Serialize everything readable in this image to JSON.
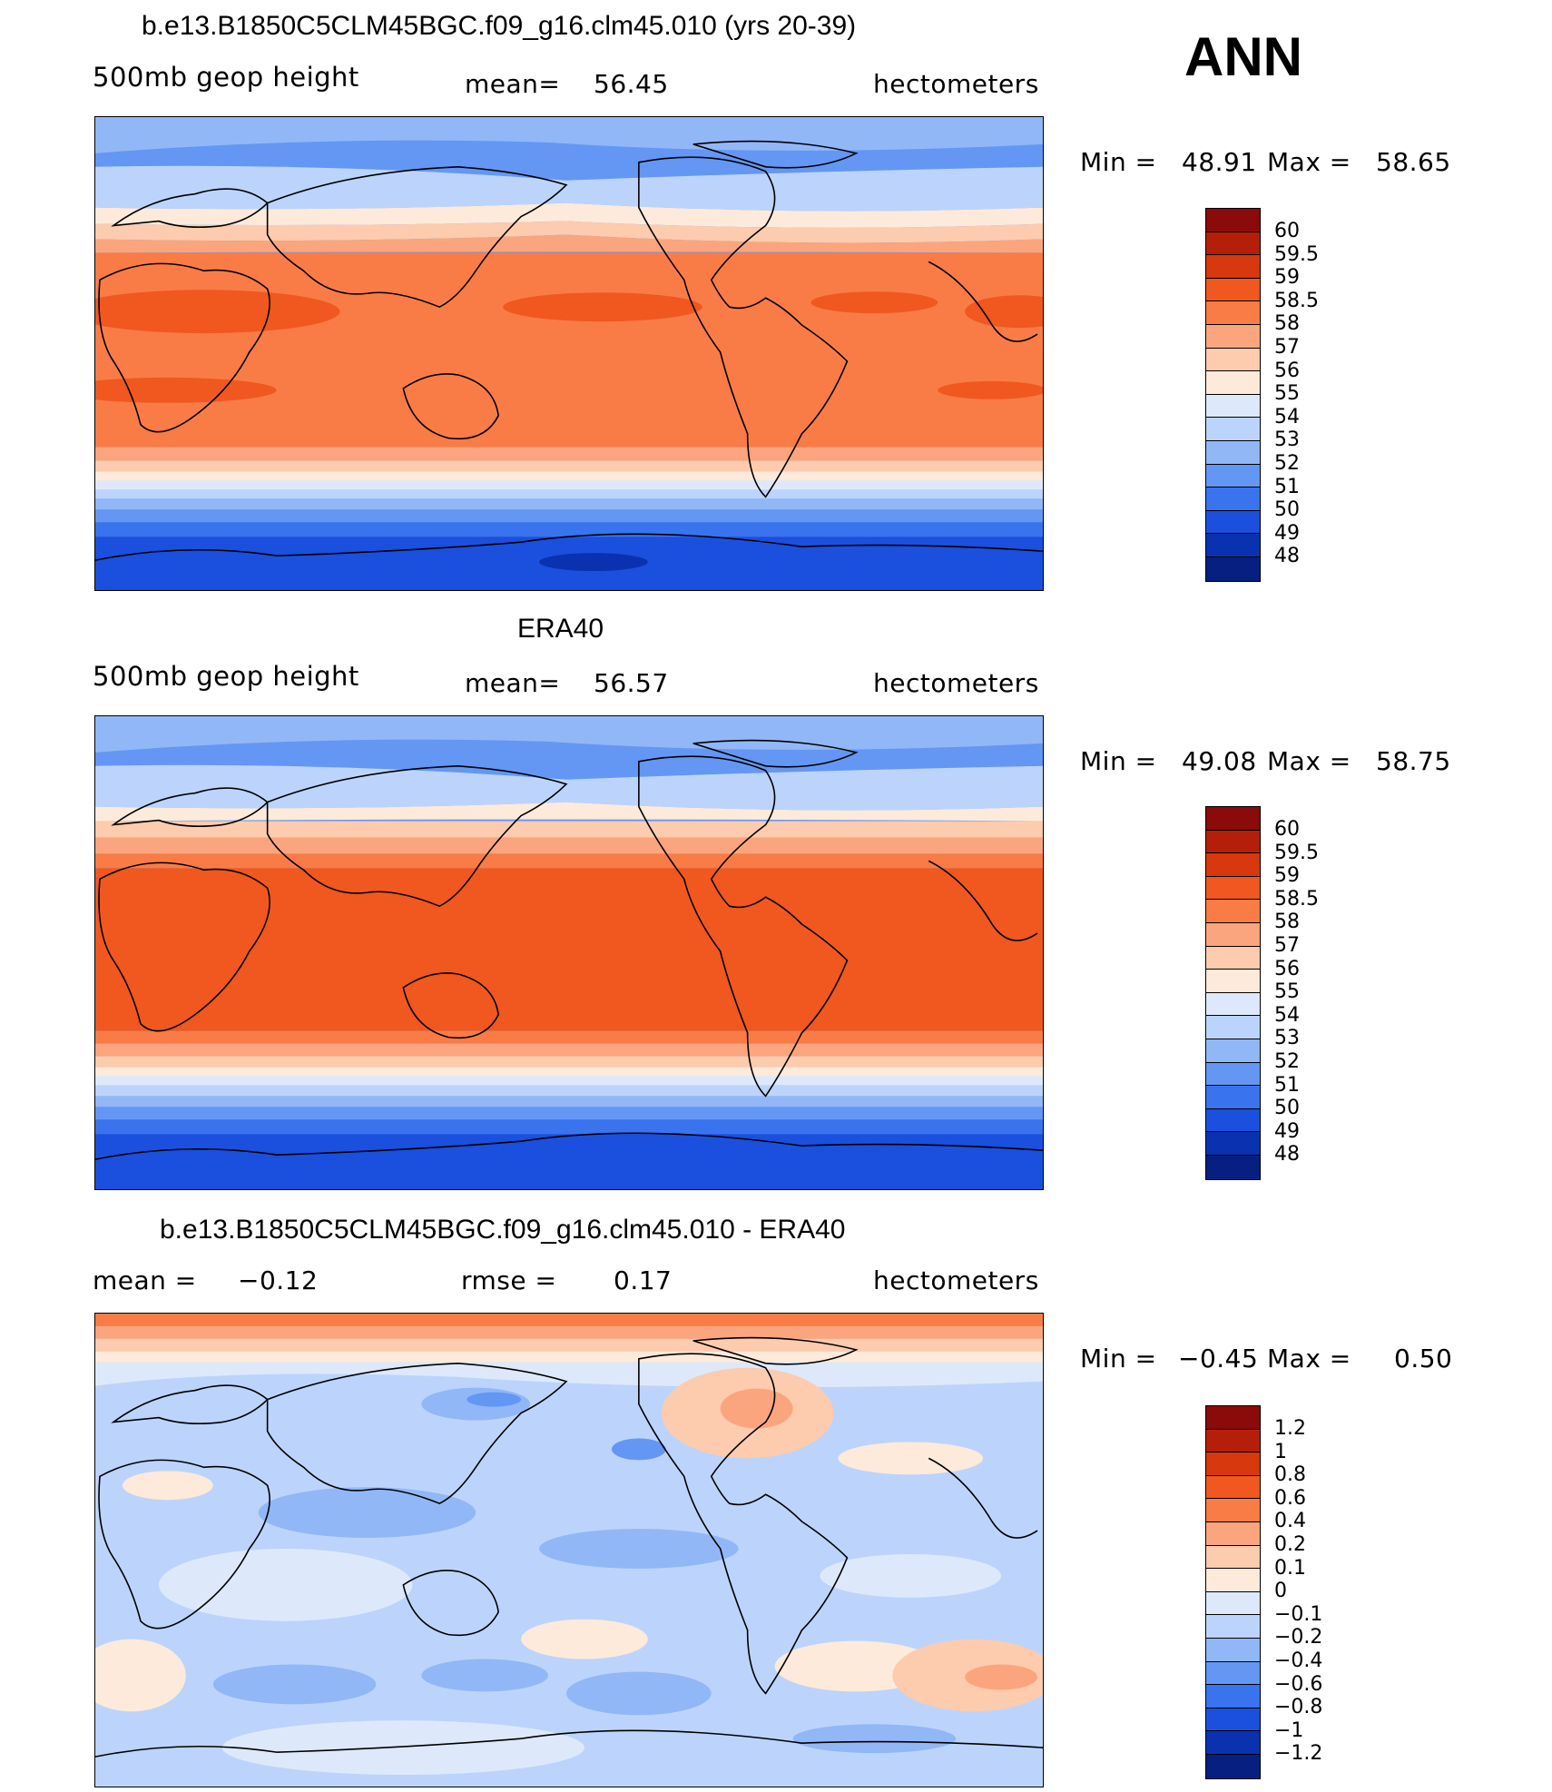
{
  "season": "ANN",
  "panels": [
    {
      "title": "b.e13.B1850C5CLM45BGC.f09_g16.clm45.010 (yrs 20-39)",
      "left_label": "500mb geop height",
      "stat_label": "mean=",
      "stat_value": "56.45",
      "units": "hectometers",
      "min_label": "Min =",
      "min_value": "48.91",
      "max_label": "Max =",
      "max_value": "58.65",
      "legend_labels": [
        "60",
        "59.5",
        "59",
        "58.5",
        "58",
        "57",
        "56",
        "55",
        "54",
        "53",
        "52",
        "51",
        "50",
        "49",
        "48"
      ],
      "legend_colors": [
        "#8b0a0a",
        "#b51f0a",
        "#d8380e",
        "#f0581f",
        "#f97c47",
        "#fba57e",
        "#fdcbae",
        "#fdeadb",
        "#dde9fb",
        "#bcd4fb",
        "#92b7f7",
        "#6497f4",
        "#3a73ee",
        "#1b4fdd",
        "#0a32b0",
        "#061f80"
      ]
    },
    {
      "title": "ERA40",
      "left_label": "500mb geop height",
      "stat_label": "mean=",
      "stat_value": "56.57",
      "units": "hectometers",
      "min_label": "Min =",
      "min_value": "49.08",
      "max_label": "Max =",
      "max_value": "58.75",
      "legend_labels": [
        "60",
        "59.5",
        "59",
        "58.5",
        "58",
        "57",
        "56",
        "55",
        "54",
        "53",
        "52",
        "51",
        "50",
        "49",
        "48"
      ],
      "legend_colors": [
        "#8b0a0a",
        "#b51f0a",
        "#d8380e",
        "#f0581f",
        "#f97c47",
        "#fba57e",
        "#fdcbae",
        "#fdeadb",
        "#dde9fb",
        "#bcd4fb",
        "#92b7f7",
        "#6497f4",
        "#3a73ee",
        "#1b4fdd",
        "#0a32b0",
        "#061f80"
      ]
    },
    {
      "title": "b.e13.B1850C5CLM45BGC.f09_g16.clm45.010 - ERA40",
      "left_label": "mean =",
      "left_value": "−0.12",
      "stat_label": "rmse =",
      "stat_value": "0.17",
      "units": "hectometers",
      "min_label": "Min =",
      "min_value": "−0.45",
      "max_label": "Max =",
      "max_value": "0.50",
      "legend_labels": [
        "1.2",
        "1",
        "0.8",
        "0.6",
        "0.4",
        "0.2",
        "0.1",
        "0",
        "−0.1",
        "−0.2",
        "−0.4",
        "−0.6",
        "−0.8",
        "−1",
        "−1.2"
      ],
      "legend_colors": [
        "#8b0a0a",
        "#b51f0a",
        "#d8380e",
        "#f0581f",
        "#f97c47",
        "#fba57e",
        "#fdcbae",
        "#fdeadb",
        "#dde9fb",
        "#bcd4fb",
        "#92b7f7",
        "#6497f4",
        "#3a73ee",
        "#1b4fdd",
        "#0a32b0",
        "#061f80"
      ]
    }
  ]
}
